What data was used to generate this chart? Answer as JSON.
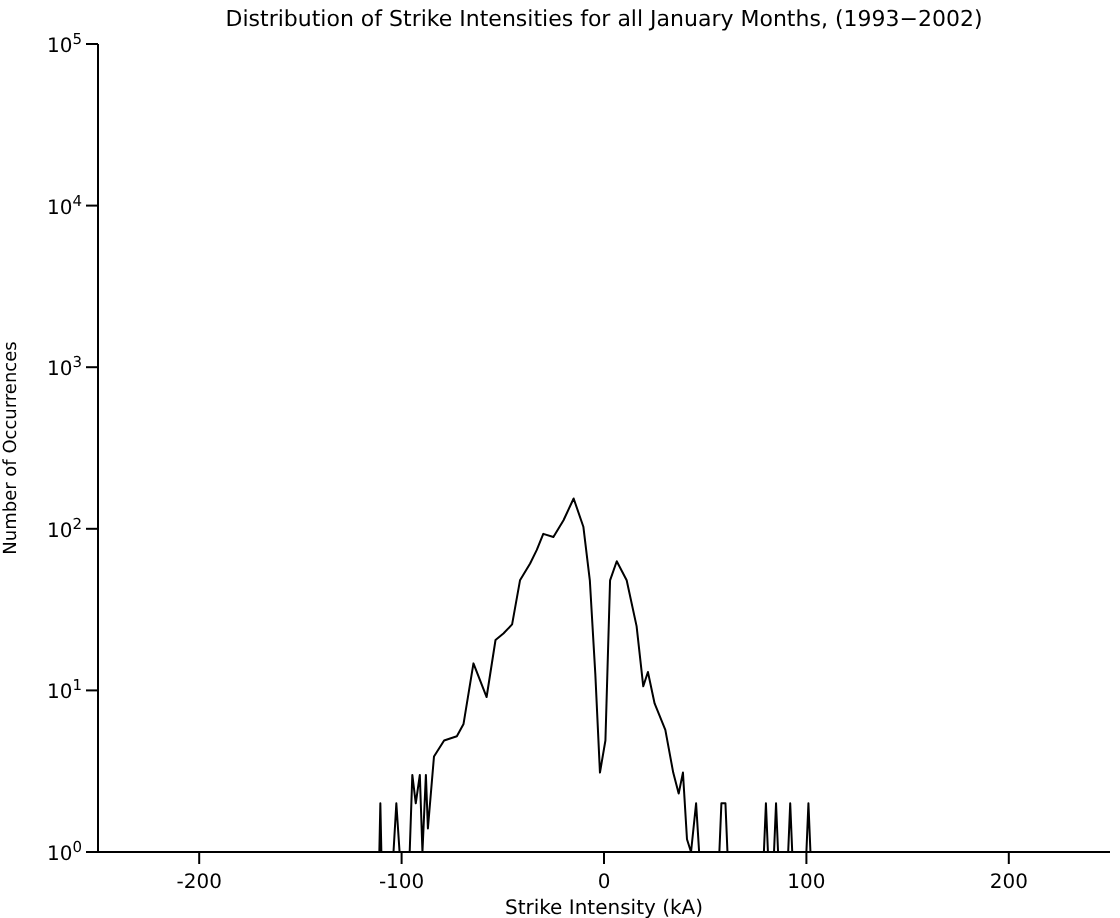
{
  "chart_data": {
    "type": "line",
    "title": "Distribution of Strike Intensities for all January Months, (1993−2002)",
    "xlabel": "Strike Intensity (kA)",
    "ylabel": "Number of Occurrences",
    "log": "y",
    "marker": "none",
    "line_style": "solid",
    "xlim": [
      -250,
      250
    ],
    "xticks": [
      -200,
      -100,
      0,
      100,
      200
    ],
    "ylim": [
      1,
      100000
    ],
    "yticks": [
      {
        "value": 1,
        "label": "10$^{0}$"
      },
      {
        "value": 10,
        "label": "10$^{1}$"
      },
      {
        "value": 100,
        "label": "10$^{2}$"
      },
      {
        "value": 1000,
        "label": "10$^{3}$"
      },
      {
        "value": 10000,
        "label": "10$^{4}$"
      },
      {
        "value": 100000,
        "label": "10$^{5}$"
      }
    ],
    "series": [
      {
        "color": "#000000",
        "x": [
          -111,
          -110.5,
          -110,
          -104,
          -102.6,
          -101,
          -96,
          -94.7,
          -93,
          -91,
          -89.7,
          -88,
          -87,
          -84,
          -79,
          -72.7,
          -69.4,
          -64.5,
          -58,
          -53.6,
          -49.7,
          -45.4,
          -41.5,
          -36.5,
          -33.2,
          -30,
          -25,
          -20,
          -15,
          -10.2,
          -7,
          -4.3,
          -2,
          0.7,
          3,
          6.3,
          11.2,
          16.1,
          19.4,
          21.7,
          25,
          30.3,
          34.2,
          36.9,
          39,
          41,
          43,
          45.5,
          47,
          57,
          58,
          60,
          61,
          79,
          80,
          81,
          84,
          85,
          86,
          91,
          92,
          93,
          100,
          101,
          102
        ],
        "values": [
          1,
          2,
          1,
          1,
          2,
          1,
          1,
          3,
          2,
          3,
          1,
          3,
          1.4,
          3.9,
          4.9,
          5.2,
          6.2,
          14.7,
          9.1,
          20.5,
          22.5,
          25.6,
          48,
          61,
          74,
          93,
          89,
          113,
          154,
          103,
          48,
          12.7,
          3.1,
          4.9,
          48,
          63,
          48,
          25,
          10.6,
          13,
          8.3,
          5.7,
          3.1,
          2.3,
          3.1,
          1.2,
          1,
          2,
          1,
          1,
          2,
          2,
          1,
          1,
          2,
          1,
          1,
          2,
          1,
          1,
          2,
          1,
          1,
          2,
          1
        ]
      }
    ]
  }
}
